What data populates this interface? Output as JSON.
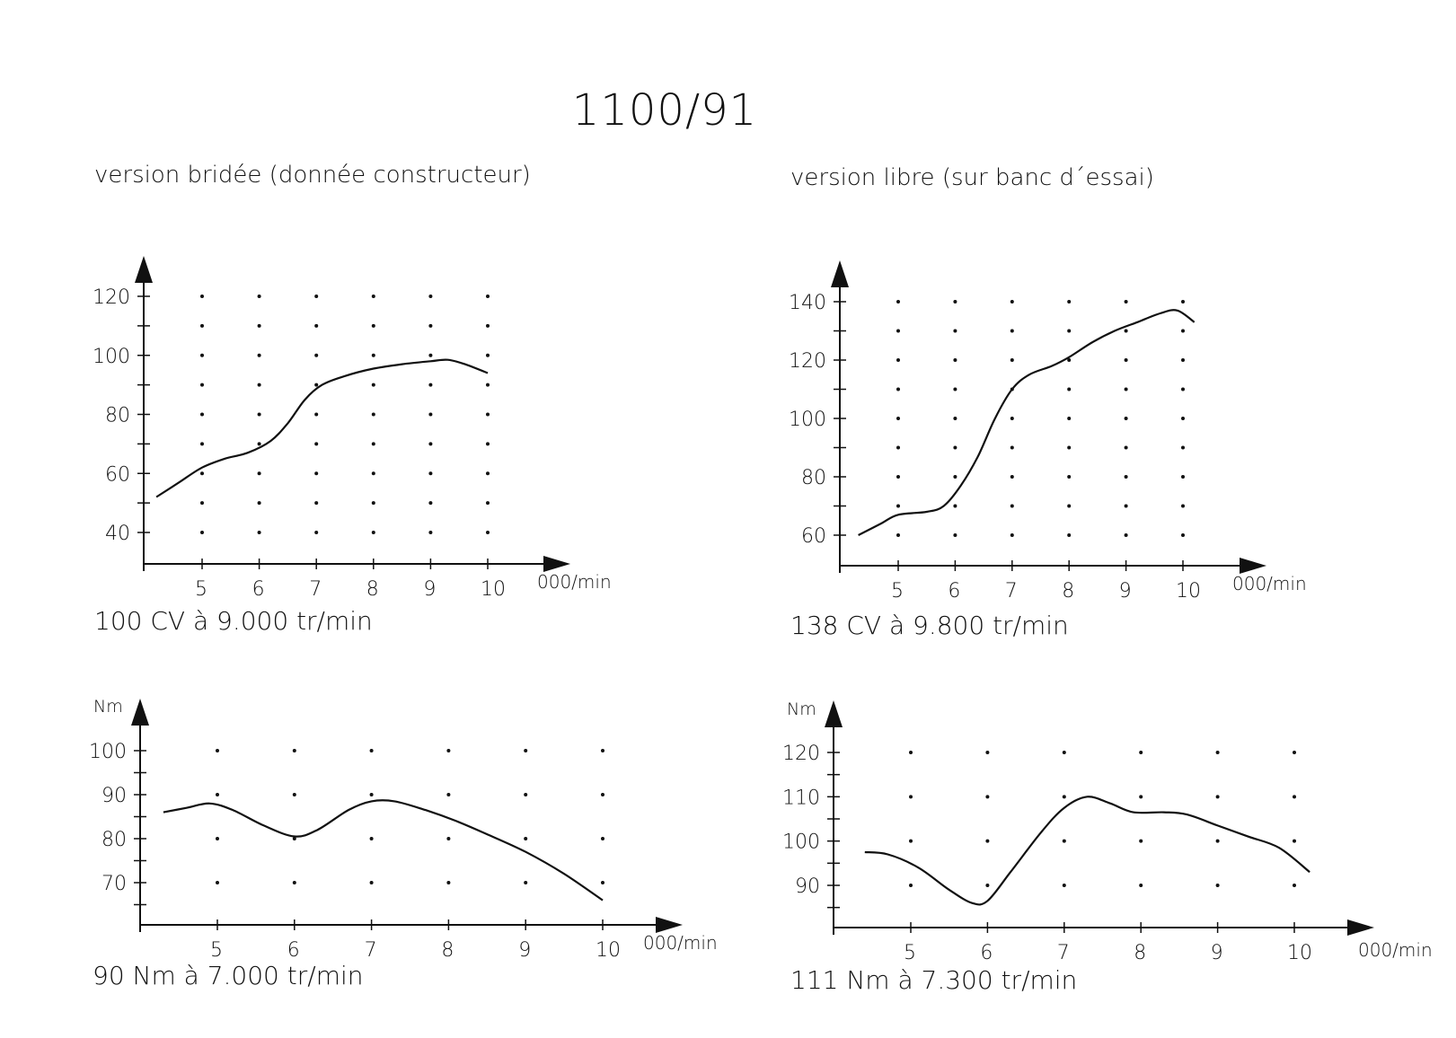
{
  "page_title": "1100/91",
  "left_heading": "version bridée (donnée constructeur)",
  "right_heading": "version libre (sur banc d´essai)",
  "chart_data": [
    {
      "type": "line",
      "quantity": "power",
      "x_unit": "000/min",
      "y_unit": "",
      "x_ticks": [
        5,
        6,
        7,
        8,
        9,
        10
      ],
      "y_ticks": [
        40,
        60,
        80,
        100,
        120
      ],
      "xlim": [
        4,
        10.7
      ],
      "ylim": [
        30,
        130
      ],
      "x": [
        4.2,
        4.6,
        5.0,
        5.4,
        5.8,
        6.2,
        6.5,
        6.8,
        7.1,
        7.5,
        8.0,
        8.5,
        9.0,
        9.3,
        9.6,
        10.0
      ],
      "y": [
        52,
        57,
        62,
        65,
        67,
        71,
        77,
        85,
        90,
        93,
        95.5,
        97,
        98,
        98.5,
        97,
        94
      ],
      "caption": "100 CV à 9.000 tr/min"
    },
    {
      "type": "line",
      "quantity": "power",
      "x_unit": "000/min",
      "y_unit": "",
      "x_ticks": [
        5,
        6,
        7,
        8,
        9,
        10
      ],
      "y_ticks": [
        60,
        80,
        100,
        120,
        140
      ],
      "xlim": [
        4,
        10.7
      ],
      "ylim": [
        50,
        150
      ],
      "x": [
        4.3,
        4.7,
        5.0,
        5.5,
        5.8,
        6.1,
        6.4,
        6.7,
        7.0,
        7.3,
        7.7,
        8.0,
        8.4,
        8.8,
        9.2,
        9.6,
        9.9,
        10.2
      ],
      "y": [
        60,
        64,
        67,
        68,
        70,
        77,
        87,
        100,
        110,
        115,
        118,
        121,
        126,
        130,
        133,
        136,
        137,
        133
      ],
      "caption": "138 CV à 9.800 tr/min"
    },
    {
      "type": "line",
      "quantity": "torque",
      "x_unit": "000/min",
      "y_unit": "Nm",
      "x_ticks": [
        5,
        6,
        7,
        8,
        9,
        10
      ],
      "y_ticks": [
        70,
        80,
        90,
        100
      ],
      "xlim": [
        4,
        10.8
      ],
      "ylim": [
        60,
        105
      ],
      "x": [
        4.3,
        4.6,
        4.9,
        5.2,
        5.6,
        6.0,
        6.3,
        6.7,
        7.0,
        7.3,
        7.7,
        8.1,
        8.5,
        9.0,
        9.5,
        10.0
      ],
      "y": [
        86,
        87,
        88,
        86.5,
        83,
        80.5,
        82,
        86.5,
        88.5,
        88.5,
        86.5,
        84,
        81,
        77,
        72,
        66
      ],
      "caption": "90 Nm à 7.000 tr/min"
    },
    {
      "type": "line",
      "quantity": "torque",
      "x_unit": "000/min",
      "y_unit": "Nm",
      "x_ticks": [
        5,
        6,
        7,
        8,
        9,
        10
      ],
      "y_ticks": [
        90,
        100,
        110,
        120
      ],
      "xlim": [
        4,
        10.9
      ],
      "ylim": [
        80,
        125
      ],
      "x": [
        4.4,
        4.7,
        5.1,
        5.5,
        5.8,
        6.0,
        6.3,
        6.7,
        7.0,
        7.3,
        7.6,
        7.9,
        8.3,
        8.6,
        9.0,
        9.4,
        9.8,
        10.2
      ],
      "y": [
        97.5,
        97,
        94,
        89,
        86,
        86.5,
        93,
        102,
        107.5,
        110,
        108.5,
        106.5,
        106.5,
        106,
        103.5,
        101,
        98.5,
        93
      ],
      "caption": "111 Nm à 7.300 tr/min"
    }
  ]
}
